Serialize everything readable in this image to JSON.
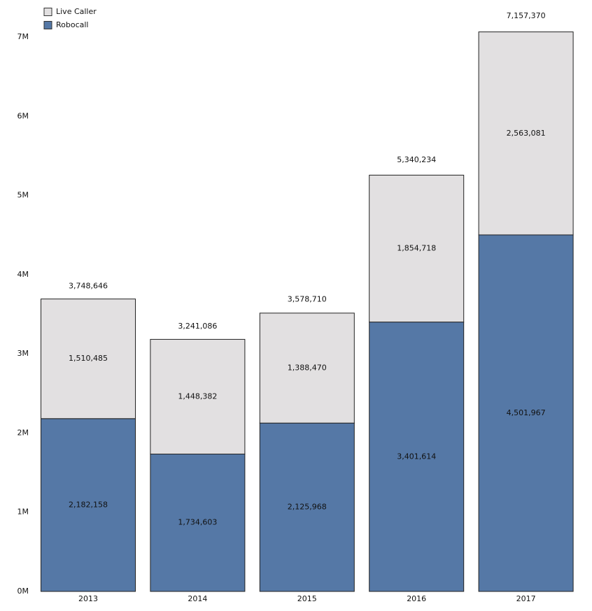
{
  "chart_data": {
    "type": "stacked-bar",
    "categories": [
      "2013",
      "2014",
      "2015",
      "2016",
      "2017"
    ],
    "series": [
      {
        "name": "Robocall",
        "color": "#5578a6",
        "values": [
          2182158,
          1734603,
          2125968,
          3401614,
          4501967
        ],
        "value_labels": [
          "2,182,158",
          "1,734,603",
          "2,125,968",
          "3,401,614",
          "4,501,967"
        ]
      },
      {
        "name": "Live Caller",
        "color": "#e2e0e1",
        "values": [
          1510485,
          1448382,
          1388470,
          1854718,
          2563081
        ],
        "value_labels": [
          "1,510,485",
          "1,448,382",
          "1,388,470",
          "1,854,718",
          "2,563,081"
        ]
      }
    ],
    "totals": {
      "values": [
        3748646,
        3241086,
        3578710,
        5340234,
        7157370
      ],
      "value_labels": [
        "3,748,646",
        "3,241,086",
        "3,578,710",
        "5,340,234",
        "7,157,370"
      ]
    },
    "ylim": [
      0,
      7000000
    ],
    "yticks": [
      {
        "value": 0,
        "label": "0M"
      },
      {
        "value": 1000000,
        "label": "1M"
      },
      {
        "value": 2000000,
        "label": "2M"
      },
      {
        "value": 3000000,
        "label": "3M"
      },
      {
        "value": 4000000,
        "label": "4M"
      },
      {
        "value": 5000000,
        "label": "5M"
      },
      {
        "value": 6000000,
        "label": "6M"
      },
      {
        "value": 7000000,
        "label": "7M"
      }
    ],
    "grid": false
  }
}
